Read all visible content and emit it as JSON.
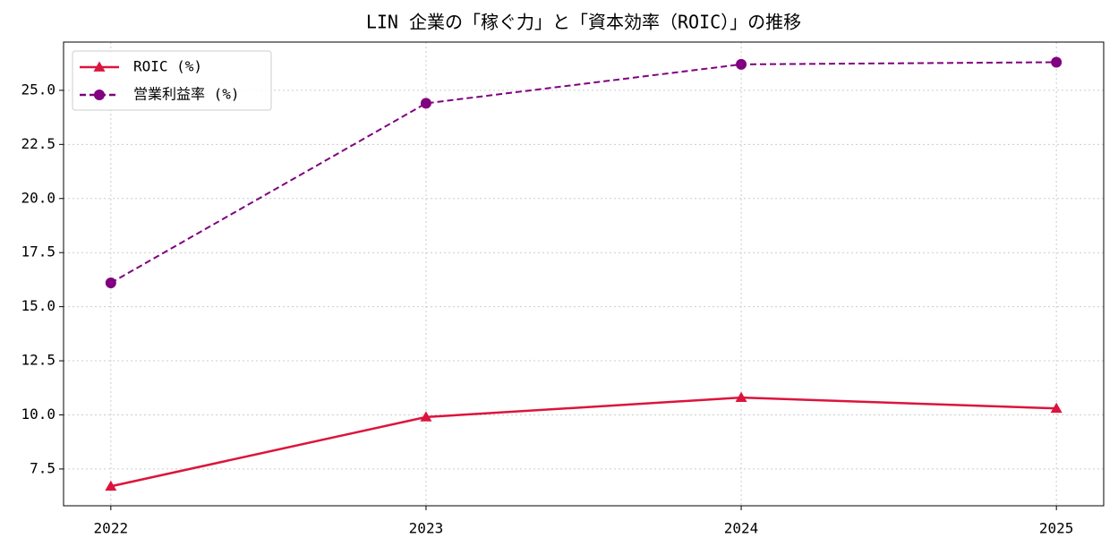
{
  "chart_data": {
    "type": "line",
    "title": "LIN 企業の「稼ぐ力」と「資本効率（ROIC）」の推移",
    "x": [
      2022,
      2023,
      2024,
      2025
    ],
    "xlim": [
      2021.85,
      2025.15
    ],
    "xticks": [
      2022,
      2023,
      2024,
      2025
    ],
    "ylim": [
      5.8,
      27.23
    ],
    "yticks": [
      7.5,
      {
        "value": 10,
        "label": "10.0"
      },
      12.5,
      {
        "value": 15,
        "label": "15.0"
      },
      17.5,
      {
        "value": 20,
        "label": "20.0"
      },
      22.5,
      {
        "value": 25,
        "label": "25.0"
      }
    ],
    "grid": true,
    "legend": "upper left",
    "series": [
      {
        "name": "ROIC (%)",
        "color": "#dc143c",
        "marker": "triangle",
        "linestyle": "solid",
        "values": [
          6.7,
          9.9,
          10.8,
          10.3
        ]
      },
      {
        "name": "営業利益率 (%)",
        "color": "#800080",
        "marker": "circle",
        "linestyle": "dashed",
        "values": [
          16.1,
          24.4,
          26.2,
          26.3
        ]
      }
    ]
  }
}
